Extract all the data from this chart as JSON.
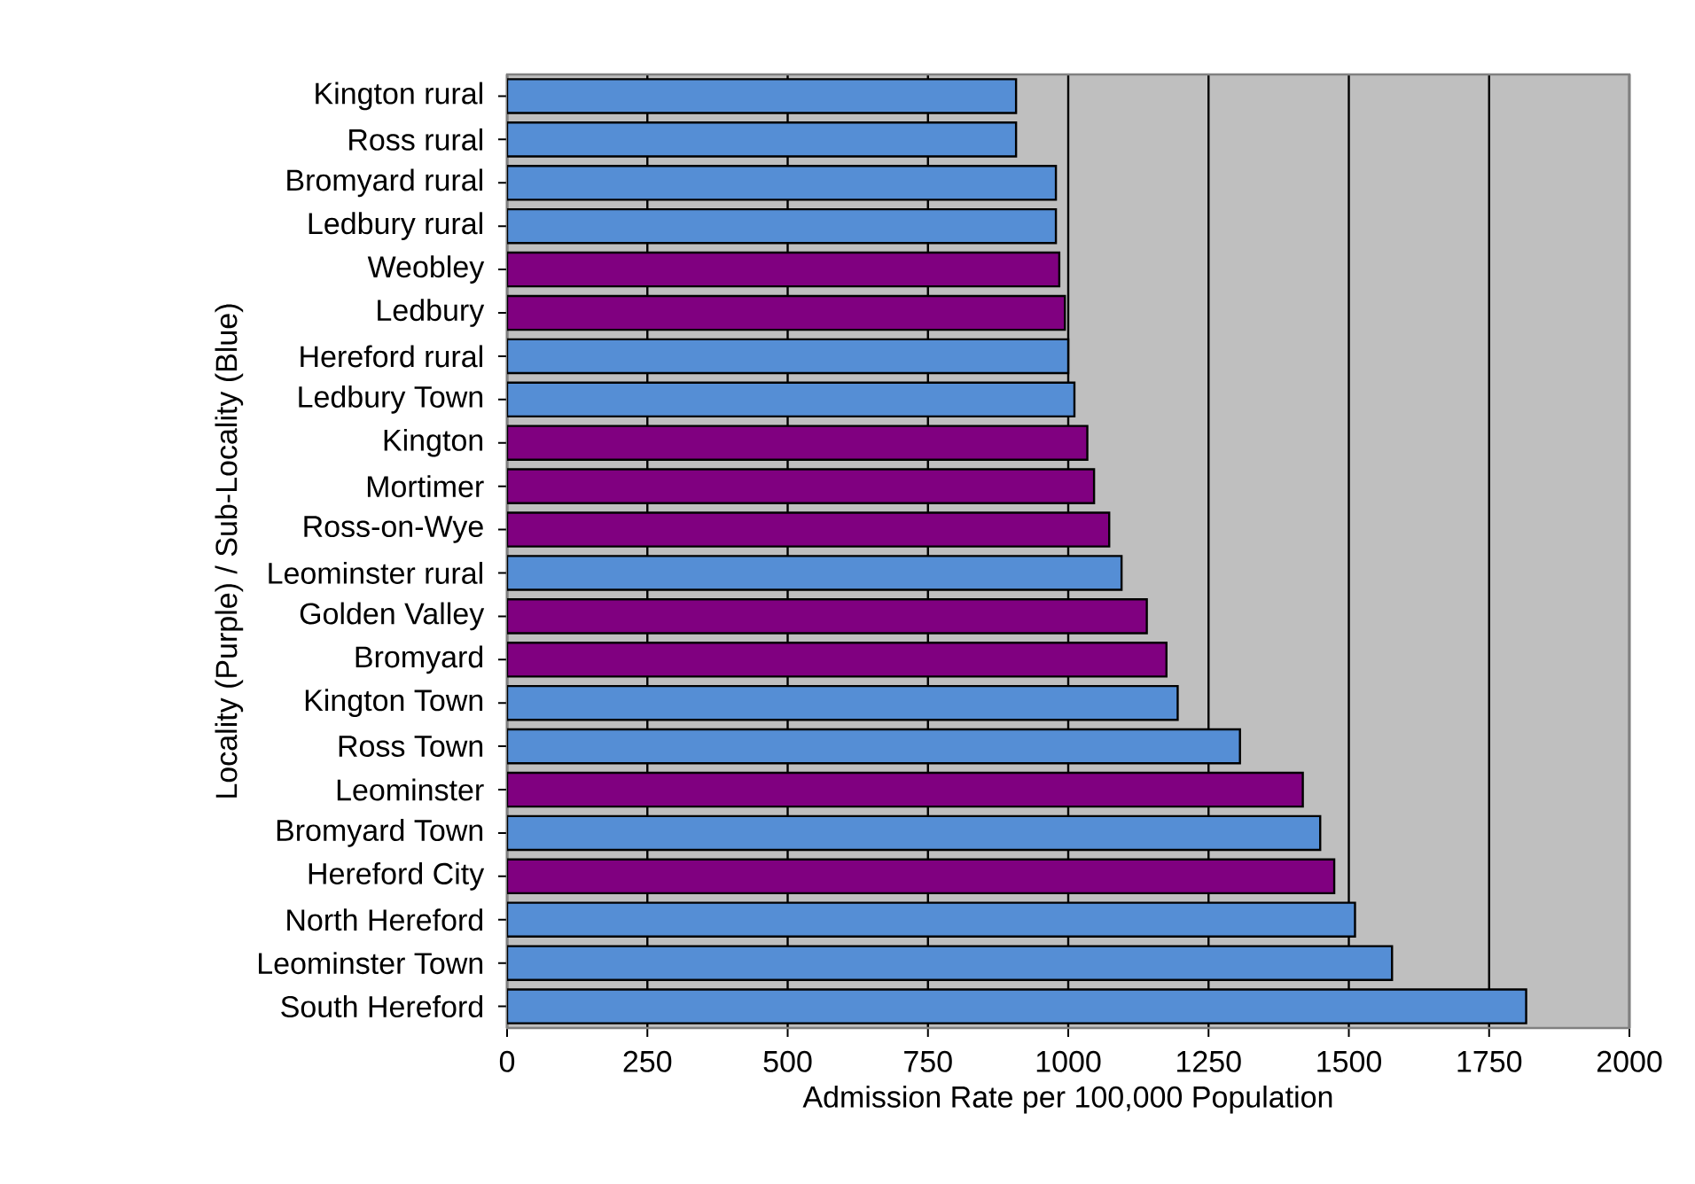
{
  "chart_data": {
    "type": "bar",
    "orientation": "horizontal",
    "xlabel": "Admission Rate per 100,000 Population",
    "ylabel": "Locality (Purple) / Sub-Locality (Blue)",
    "categories": [
      "Kington rural",
      "Ross rural",
      "Bromyard rural",
      "Ledbury rural",
      "Weobley",
      "Ledbury",
      "Hereford rural",
      "Ledbury Town",
      "Kington",
      "Mortimer",
      "Ross-on-Wye",
      "Leominster rural",
      "Golden Valley",
      "Bromyard",
      "Kington Town",
      "Ross Town",
      "Leominster",
      "Bromyard Town",
      "Hereford City",
      "North Hereford",
      "Leominster Town",
      "South Hereford"
    ],
    "values": [
      907,
      907,
      978,
      978,
      984,
      994,
      1000,
      1011,
      1034,
      1046,
      1073,
      1095,
      1140,
      1175,
      1195,
      1306,
      1418,
      1449,
      1474,
      1511,
      1577,
      1816
    ],
    "colors": [
      "#558ed5",
      "#558ed5",
      "#558ed5",
      "#558ed5",
      "#800080",
      "#800080",
      "#558ed5",
      "#558ed5",
      "#800080",
      "#800080",
      "#800080",
      "#558ed5",
      "#800080",
      "#800080",
      "#558ed5",
      "#558ed5",
      "#800080",
      "#558ed5",
      "#800080",
      "#558ed5",
      "#558ed5",
      "#558ed5"
    ],
    "xlim": [
      0,
      2000
    ],
    "xticks": [
      0,
      250,
      500,
      750,
      1000,
      1250,
      1500,
      1750,
      2000
    ],
    "grid": "x"
  }
}
